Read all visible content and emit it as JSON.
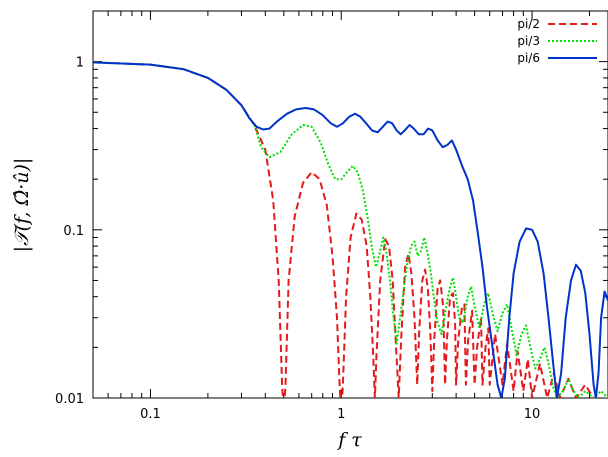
{
  "chart_data": {
    "type": "line",
    "title": "",
    "xlabel": "f τ",
    "ylabel": "|𝒯(f, Ω̂·û)|",
    "xscale": "log",
    "yscale": "log",
    "xlim": [
      0.05,
      25
    ],
    "ylim": [
      0.01,
      2
    ],
    "xticks": [
      {
        "value": 0.1,
        "label": "0.1"
      },
      {
        "value": 1,
        "label": "1"
      },
      {
        "value": 10,
        "label": "10"
      }
    ],
    "yticks": [
      {
        "value": 0.01,
        "label": "0.01"
      },
      {
        "value": 0.1,
        "label": "0.1"
      },
      {
        "value": 1,
        "label": "1"
      }
    ],
    "grid": false,
    "legend_position": "top-right",
    "series": [
      {
        "name": "pi/2",
        "color": "#e41a1c",
        "style": "dashed",
        "points": [
          [
            0.05,
            0.99
          ],
          [
            0.1,
            0.96
          ],
          [
            0.15,
            0.9
          ],
          [
            0.2,
            0.8
          ],
          [
            0.25,
            0.68
          ],
          [
            0.3,
            0.55
          ],
          [
            0.35,
            0.42
          ],
          [
            0.4,
            0.3
          ],
          [
            0.44,
            0.15
          ],
          [
            0.47,
            0.05
          ],
          [
            0.49,
            0.012
          ],
          [
            0.5,
            0.008
          ],
          [
            0.51,
            0.012
          ],
          [
            0.53,
            0.05
          ],
          [
            0.57,
            0.12
          ],
          [
            0.63,
            0.19
          ],
          [
            0.7,
            0.22
          ],
          [
            0.77,
            0.2
          ],
          [
            0.84,
            0.14
          ],
          [
            0.9,
            0.07
          ],
          [
            0.95,
            0.03
          ],
          [
            0.98,
            0.012
          ],
          [
            1.0,
            0.008
          ],
          [
            1.02,
            0.012
          ],
          [
            1.06,
            0.04
          ],
          [
            1.12,
            0.09
          ],
          [
            1.2,
            0.125
          ],
          [
            1.28,
            0.115
          ],
          [
            1.36,
            0.08
          ],
          [
            1.42,
            0.04
          ],
          [
            1.47,
            0.018
          ],
          [
            1.5,
            0.01
          ],
          [
            1.53,
            0.018
          ],
          [
            1.6,
            0.05
          ],
          [
            1.7,
            0.088
          ],
          [
            1.78,
            0.08
          ],
          [
            1.86,
            0.05
          ],
          [
            1.93,
            0.022
          ],
          [
            2.0,
            0.01
          ],
          [
            2.06,
            0.022
          ],
          [
            2.16,
            0.06
          ],
          [
            2.25,
            0.072
          ],
          [
            2.33,
            0.055
          ],
          [
            2.42,
            0.03
          ],
          [
            2.5,
            0.012
          ],
          [
            2.56,
            0.025
          ],
          [
            2.66,
            0.05
          ],
          [
            2.75,
            0.058
          ],
          [
            2.84,
            0.045
          ],
          [
            2.93,
            0.025
          ],
          [
            3.0,
            0.011
          ],
          [
            3.07,
            0.022
          ],
          [
            3.2,
            0.045
          ],
          [
            3.3,
            0.05
          ],
          [
            3.42,
            0.035
          ],
          [
            3.5,
            0.012
          ],
          [
            3.58,
            0.022
          ],
          [
            3.72,
            0.04
          ],
          [
            3.85,
            0.042
          ],
          [
            3.95,
            0.028
          ],
          [
            4.0,
            0.012
          ],
          [
            4.1,
            0.022
          ],
          [
            4.3,
            0.035
          ],
          [
            4.42,
            0.036
          ],
          [
            4.5,
            0.012
          ],
          [
            4.62,
            0.022
          ],
          [
            4.85,
            0.033
          ],
          [
            5.0,
            0.012
          ],
          [
            5.15,
            0.02
          ],
          [
            5.4,
            0.03
          ],
          [
            5.5,
            0.012
          ],
          [
            5.7,
            0.02
          ],
          [
            5.9,
            0.026
          ],
          [
            6.0,
            0.012
          ],
          [
            6.4,
            0.024
          ],
          [
            7.0,
            0.012
          ],
          [
            7.4,
            0.021
          ],
          [
            8.0,
            0.011
          ],
          [
            8.4,
            0.019
          ],
          [
            9.0,
            0.011
          ],
          [
            9.5,
            0.017
          ],
          [
            10.0,
            0.01
          ],
          [
            11.0,
            0.016
          ],
          [
            12.0,
            0.01
          ],
          [
            13.0,
            0.014
          ],
          [
            14.0,
            0.01
          ],
          [
            15.5,
            0.013
          ],
          [
            17.0,
            0.01
          ],
          [
            19.0,
            0.012
          ],
          [
            21.0,
            0.01
          ]
        ]
      },
      {
        "name": "pi/3",
        "color": "#00dd00",
        "style": "dotted",
        "points": [
          [
            0.05,
            0.99
          ],
          [
            0.1,
            0.96
          ],
          [
            0.15,
            0.9
          ],
          [
            0.2,
            0.8
          ],
          [
            0.25,
            0.68
          ],
          [
            0.3,
            0.55
          ],
          [
            0.35,
            0.42
          ],
          [
            0.38,
            0.31
          ],
          [
            0.42,
            0.27
          ],
          [
            0.48,
            0.29
          ],
          [
            0.55,
            0.37
          ],
          [
            0.63,
            0.42
          ],
          [
            0.7,
            0.41
          ],
          [
            0.78,
            0.33
          ],
          [
            0.85,
            0.25
          ],
          [
            0.93,
            0.2
          ],
          [
            1.0,
            0.2
          ],
          [
            1.07,
            0.22
          ],
          [
            1.15,
            0.24
          ],
          [
            1.22,
            0.22
          ],
          [
            1.3,
            0.17
          ],
          [
            1.38,
            0.115
          ],
          [
            1.45,
            0.078
          ],
          [
            1.52,
            0.06
          ],
          [
            1.6,
            0.075
          ],
          [
            1.66,
            0.09
          ],
          [
            1.72,
            0.075
          ],
          [
            1.8,
            0.05
          ],
          [
            1.88,
            0.03
          ],
          [
            1.95,
            0.021
          ],
          [
            2.05,
            0.032
          ],
          [
            2.2,
            0.06
          ],
          [
            2.32,
            0.08
          ],
          [
            2.42,
            0.085
          ],
          [
            2.52,
            0.07
          ],
          [
            2.62,
            0.075
          ],
          [
            2.72,
            0.09
          ],
          [
            2.82,
            0.075
          ],
          [
            2.95,
            0.055
          ],
          [
            3.05,
            0.04
          ],
          [
            3.2,
            0.028
          ],
          [
            3.35,
            0.024
          ],
          [
            3.5,
            0.032
          ],
          [
            3.7,
            0.045
          ],
          [
            3.85,
            0.052
          ],
          [
            4.0,
            0.04
          ],
          [
            4.15,
            0.03
          ],
          [
            4.35,
            0.028
          ],
          [
            4.6,
            0.04
          ],
          [
            4.8,
            0.046
          ],
          [
            5.0,
            0.035
          ],
          [
            5.3,
            0.026
          ],
          [
            5.6,
            0.036
          ],
          [
            5.9,
            0.042
          ],
          [
            6.2,
            0.032
          ],
          [
            6.6,
            0.025
          ],
          [
            7.0,
            0.032
          ],
          [
            7.4,
            0.036
          ],
          [
            7.8,
            0.026
          ],
          [
            8.3,
            0.018
          ],
          [
            8.8,
            0.024
          ],
          [
            9.3,
            0.027
          ],
          [
            9.8,
            0.02
          ],
          [
            10.4,
            0.015
          ],
          [
            11.0,
            0.017
          ],
          [
            11.6,
            0.02
          ],
          [
            12.2,
            0.016
          ],
          [
            12.8,
            0.012
          ],
          [
            13.5,
            0.01
          ],
          [
            14.5,
            0.011
          ],
          [
            15.5,
            0.013
          ],
          [
            16.5,
            0.011
          ],
          [
            17.5,
            0.01
          ],
          [
            19.0,
            0.011
          ],
          [
            21.0,
            0.01
          ],
          [
            23.0,
            0.011
          ],
          [
            25.0,
            0.01
          ]
        ]
      },
      {
        "name": "pi/6",
        "color": "#0033cc",
        "style": "solid",
        "points": [
          [
            0.05,
            0.99
          ],
          [
            0.1,
            0.96
          ],
          [
            0.15,
            0.9
          ],
          [
            0.2,
            0.8
          ],
          [
            0.25,
            0.68
          ],
          [
            0.3,
            0.55
          ],
          [
            0.33,
            0.46
          ],
          [
            0.36,
            0.41
          ],
          [
            0.39,
            0.395
          ],
          [
            0.42,
            0.4
          ],
          [
            0.46,
            0.44
          ],
          [
            0.52,
            0.49
          ],
          [
            0.58,
            0.52
          ],
          [
            0.65,
            0.53
          ],
          [
            0.72,
            0.52
          ],
          [
            0.8,
            0.48
          ],
          [
            0.88,
            0.43
          ],
          [
            0.95,
            0.41
          ],
          [
            1.02,
            0.43
          ],
          [
            1.1,
            0.47
          ],
          [
            1.18,
            0.49
          ],
          [
            1.26,
            0.47
          ],
          [
            1.35,
            0.43
          ],
          [
            1.45,
            0.39
          ],
          [
            1.55,
            0.38
          ],
          [
            1.65,
            0.41
          ],
          [
            1.75,
            0.44
          ],
          [
            1.85,
            0.43
          ],
          [
            1.95,
            0.39
          ],
          [
            2.05,
            0.37
          ],
          [
            2.15,
            0.39
          ],
          [
            2.28,
            0.42
          ],
          [
            2.4,
            0.4
          ],
          [
            2.55,
            0.37
          ],
          [
            2.7,
            0.37
          ],
          [
            2.85,
            0.4
          ],
          [
            3.0,
            0.39
          ],
          [
            3.2,
            0.34
          ],
          [
            3.4,
            0.31
          ],
          [
            3.6,
            0.32
          ],
          [
            3.8,
            0.34
          ],
          [
            4.0,
            0.3
          ],
          [
            4.3,
            0.24
          ],
          [
            4.6,
            0.2
          ],
          [
            4.9,
            0.15
          ],
          [
            5.2,
            0.095
          ],
          [
            5.5,
            0.06
          ],
          [
            5.8,
            0.035
          ],
          [
            6.2,
            0.02
          ],
          [
            6.6,
            0.012
          ],
          [
            6.9,
            0.01
          ],
          [
            7.2,
            0.013
          ],
          [
            7.6,
            0.03
          ],
          [
            8.0,
            0.055
          ],
          [
            8.6,
            0.085
          ],
          [
            9.3,
            0.102
          ],
          [
            10.0,
            0.1
          ],
          [
            10.7,
            0.085
          ],
          [
            11.5,
            0.055
          ],
          [
            12.2,
            0.03
          ],
          [
            12.9,
            0.016
          ],
          [
            13.5,
            0.01
          ],
          [
            14.2,
            0.014
          ],
          [
            15.0,
            0.03
          ],
          [
            16.0,
            0.05
          ],
          [
            17.0,
            0.062
          ],
          [
            18.0,
            0.057
          ],
          [
            19.0,
            0.042
          ],
          [
            20.0,
            0.024
          ],
          [
            21.0,
            0.012
          ],
          [
            21.6,
            0.01
          ],
          [
            22.3,
            0.014
          ],
          [
            23.0,
            0.03
          ],
          [
            24.0,
            0.043
          ],
          [
            25.0,
            0.038
          ]
        ]
      }
    ]
  }
}
